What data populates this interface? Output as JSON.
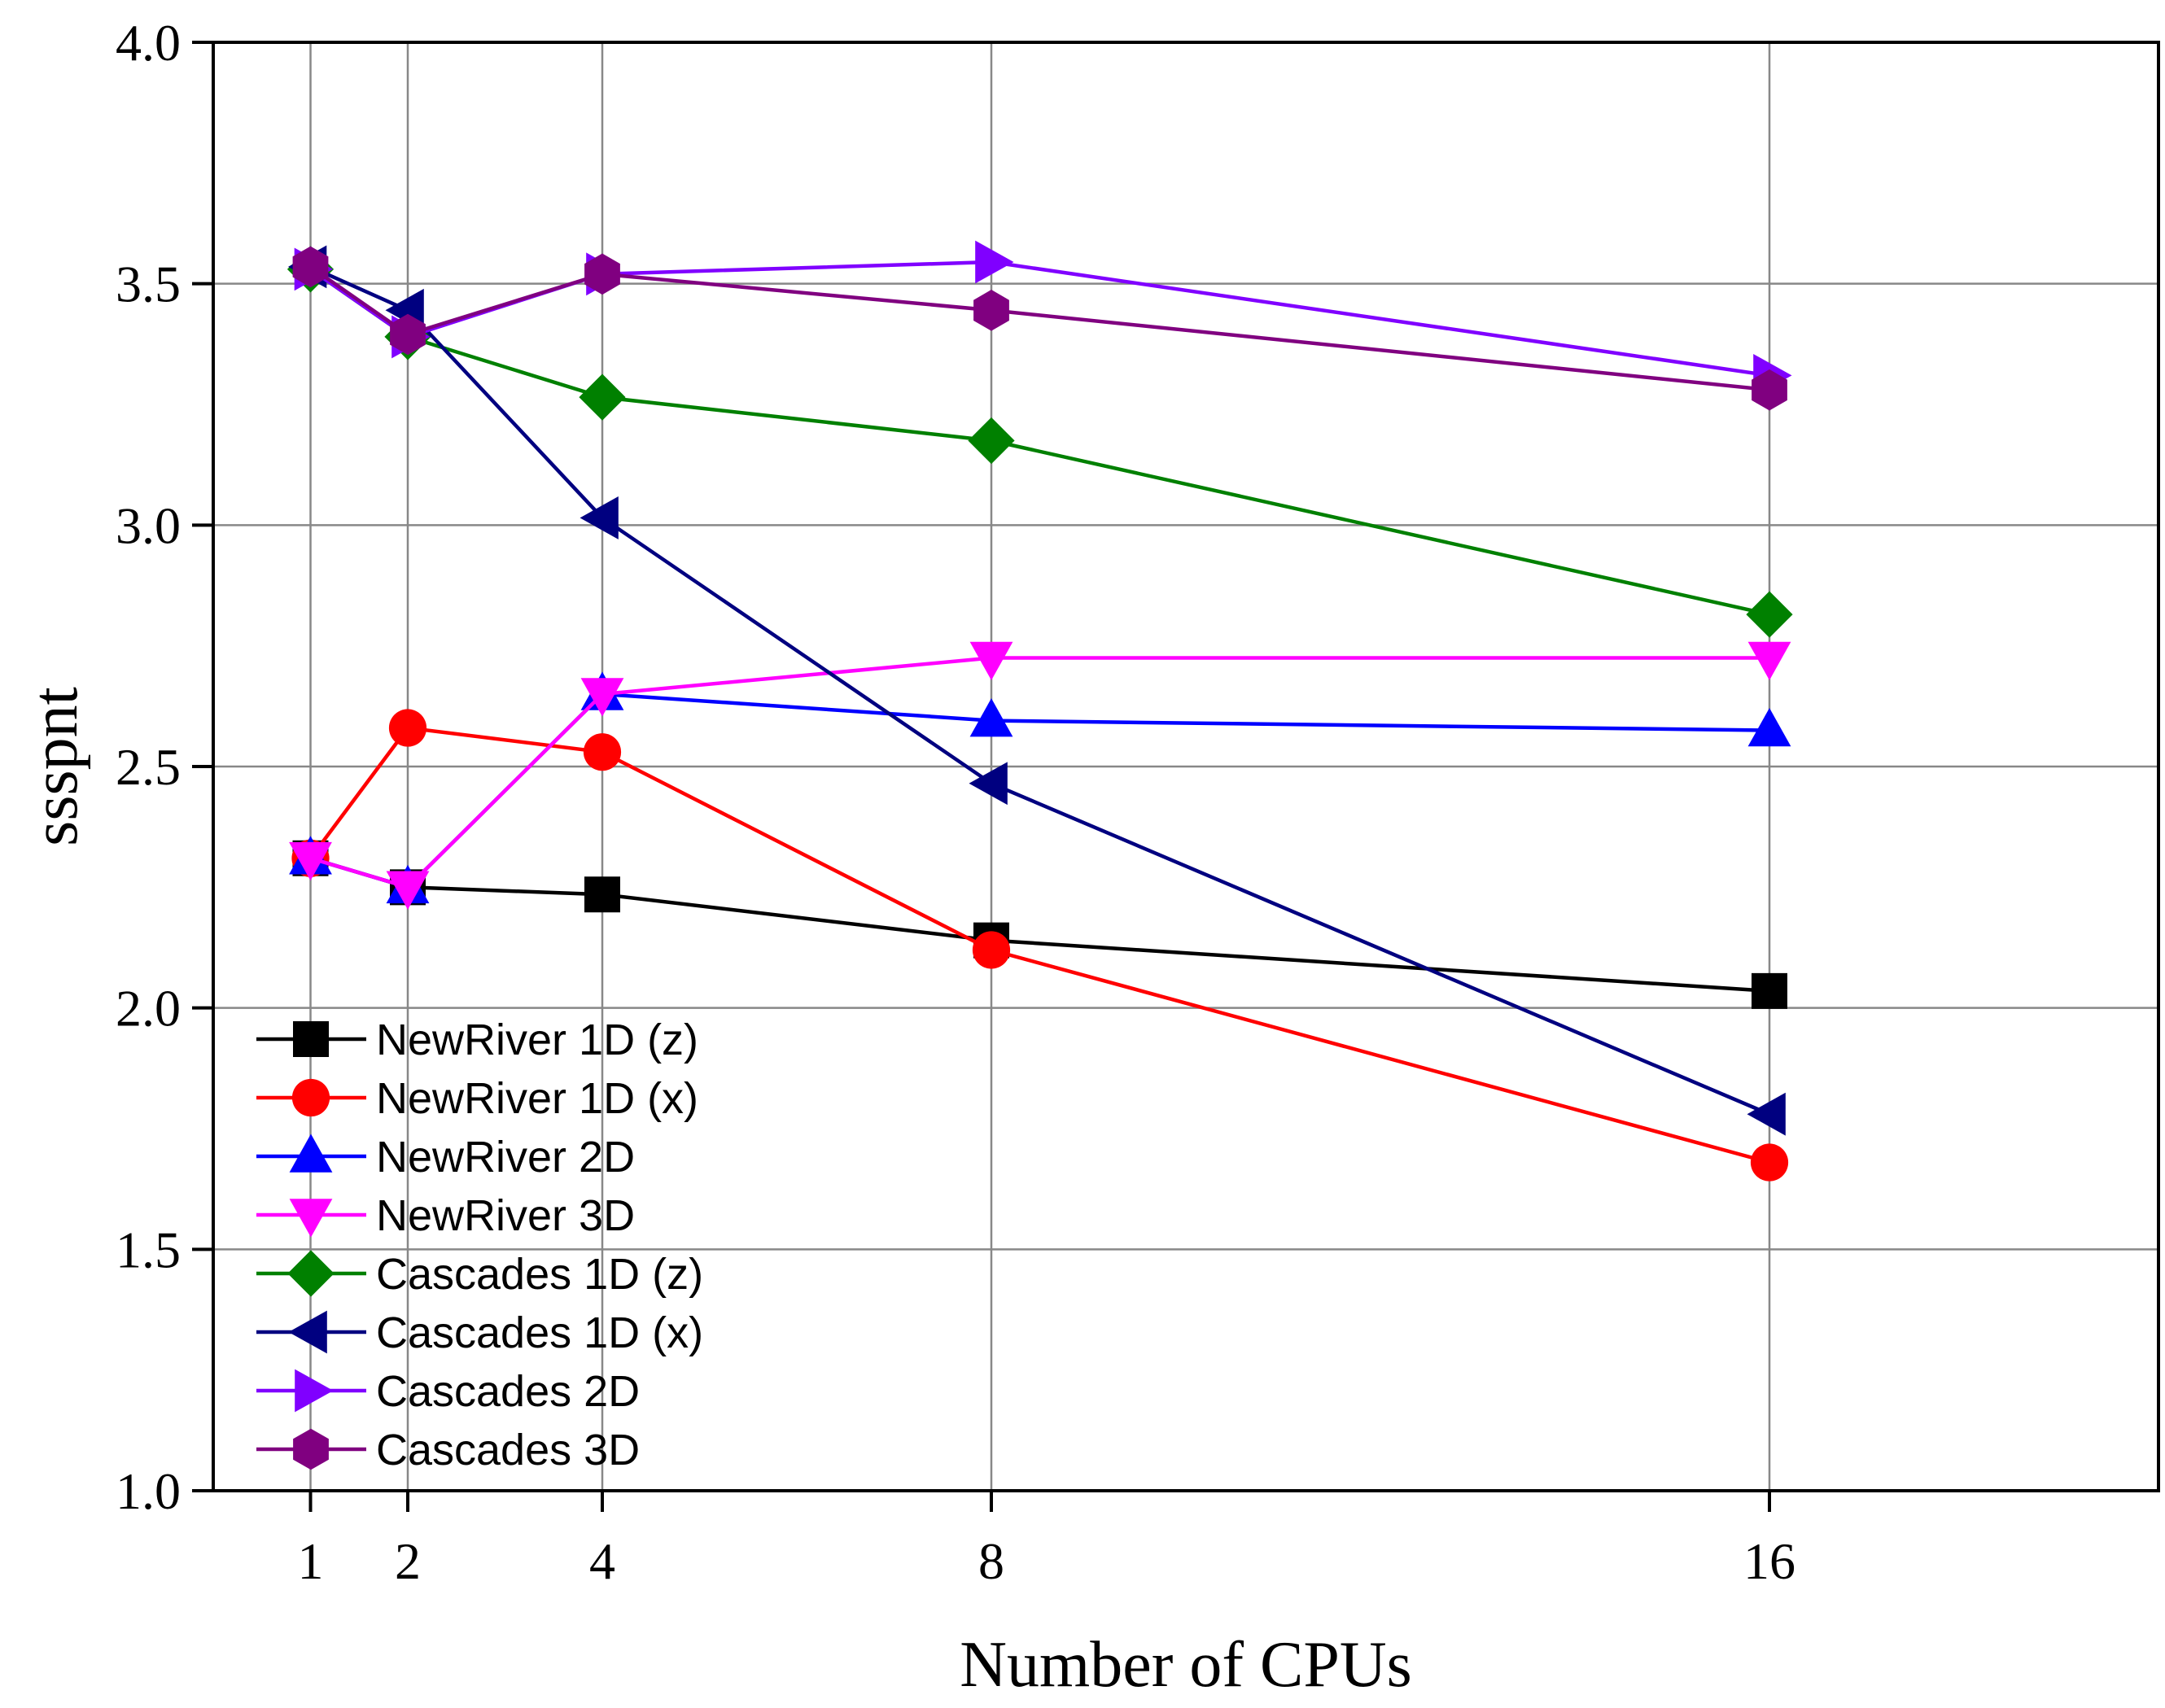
{
  "chart_data": {
    "type": "line",
    "xlabel": "Number of CPUs",
    "ylabel": "ssspnt",
    "x": [
      1,
      2,
      4,
      8,
      16
    ],
    "x_tick_labels": [
      "1",
      "2",
      "4",
      "8",
      "16"
    ],
    "xlim": [
      0,
      20
    ],
    "ylim": [
      1.0,
      4.0
    ],
    "y_ticks": [
      1.0,
      1.5,
      2.0,
      2.5,
      3.0,
      3.5,
      4.0
    ],
    "y_tick_labels": [
      "1.0",
      "1.5",
      "2.0",
      "2.5",
      "3.0",
      "3.5",
      "4.0"
    ],
    "grid": true,
    "legend_position": "bottom-left",
    "series": [
      {
        "name": "NewRiver 1D (z)",
        "color": "#000000",
        "marker": "square",
        "values": [
          2.31,
          2.25,
          2.235,
          2.14,
          2.035
        ]
      },
      {
        "name": "NewRiver 1D (x)",
        "color": "#ff0000",
        "marker": "circle",
        "values": [
          2.31,
          2.58,
          2.53,
          2.12,
          1.68
        ]
      },
      {
        "name": "NewRiver 2D",
        "color": "#0000ff",
        "marker": "triangle-up",
        "values": [
          2.31,
          2.25,
          2.65,
          2.595,
          2.575
        ]
      },
      {
        "name": "NewRiver 3D",
        "color": "#ff00ff",
        "marker": "triangle-down",
        "values": [
          2.31,
          2.25,
          2.65,
          2.725,
          2.725
        ]
      },
      {
        "name": "Cascades 1D (z)",
        "color": "#008000",
        "marker": "diamond",
        "values": [
          3.53,
          3.39,
          3.265,
          3.175,
          2.815
        ]
      },
      {
        "name": "Cascades 1D (x)",
        "color": "#000080",
        "marker": "triangle-left",
        "values": [
          3.535,
          3.445,
          3.015,
          2.465,
          1.78
        ]
      },
      {
        "name": "Cascades 2D",
        "color": "#8000ff",
        "marker": "triangle-right",
        "values": [
          3.53,
          3.39,
          3.52,
          3.545,
          3.31
        ]
      },
      {
        "name": "Cascades 3D",
        "color": "#800080",
        "marker": "hexagon",
        "values": [
          3.535,
          3.395,
          3.52,
          3.445,
          3.28
        ]
      }
    ]
  }
}
